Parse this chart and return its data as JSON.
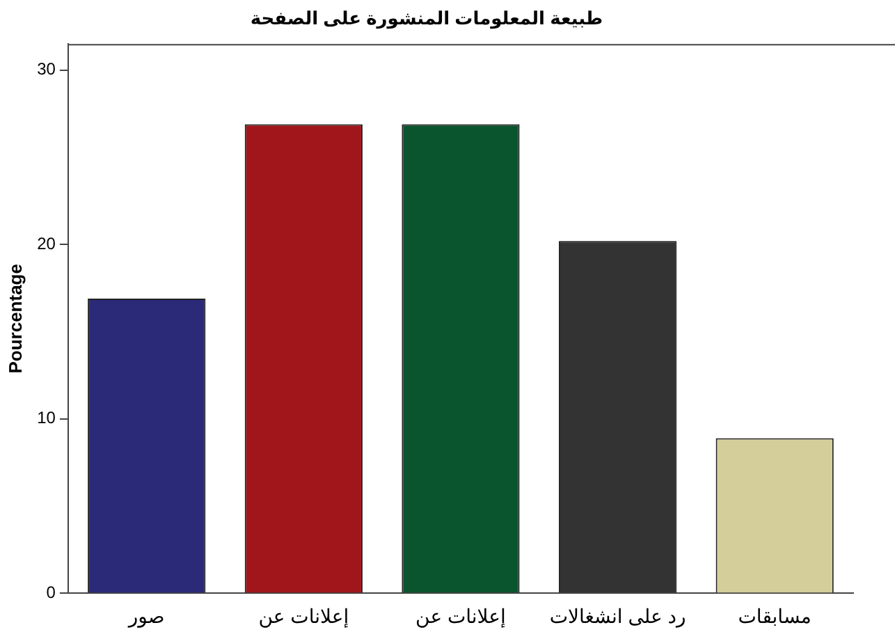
{
  "chart_data": {
    "type": "bar",
    "title": "طبيعة المعلومات المنشورة على الصفحة",
    "ylabel": "Pourcentage",
    "categories": [
      "صور",
      "إعلانات عن",
      "إعلانات عن",
      "رد على انشغالات",
      "مسابقات"
    ],
    "values": [
      16.9,
      26.9,
      26.9,
      20.2,
      8.9
    ],
    "colors": [
      "#2a2a78",
      "#a0161b",
      "#0a542e",
      "#333333",
      "#d4cf9a"
    ],
    "ylim": [
      0,
      31.5
    ],
    "yticks": [
      0,
      10,
      20,
      30
    ],
    "grid": false,
    "legend": false
  }
}
